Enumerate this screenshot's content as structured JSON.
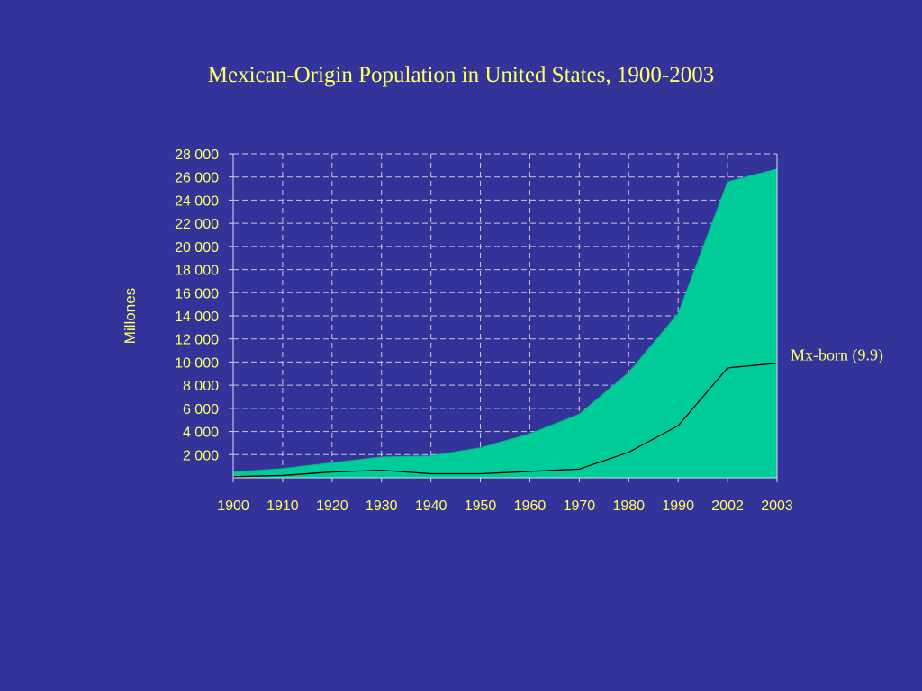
{
  "slide": {
    "title": "Mexican-Origin Population in United States, 1900-2003"
  },
  "chart_data": {
    "type": "area",
    "title": "Mexican-Origin Population in United States, 1900-2003",
    "xlabel": "",
    "ylabel": "Millones",
    "categories": [
      "1900",
      "1910",
      "1920",
      "1930",
      "1940",
      "1950",
      "1960",
      "1970",
      "1980",
      "1990",
      "2002",
      "2003"
    ],
    "ylim": [
      0,
      28000
    ],
    "yticks": [
      2000,
      4000,
      6000,
      8000,
      10000,
      12000,
      14000,
      16000,
      18000,
      20000,
      22000,
      24000,
      26000,
      28000
    ],
    "ytick_labels": [
      "2 000",
      "4 000",
      "6 000",
      "8 000",
      "10 000",
      "12 000",
      "14 000",
      "16 000",
      "18 000",
      "20 000",
      "22 000",
      "24 000",
      "26 000",
      "28 000"
    ],
    "grid": true,
    "series": [
      {
        "values": [
          500,
          800,
          1300,
          1800,
          1900,
          2600,
          3800,
          5500,
          9100,
          14200,
          25600,
          26700
        ],
        "color": "#00cc99"
      },
      {
        "values": [
          100,
          200,
          500,
          650,
          350,
          350,
          550,
          750,
          2200,
          4500,
          9500,
          9900
        ],
        "color": "#000000"
      }
    ],
    "annotations": [
      {
        "text": "Mx-born (9.9)",
        "x": "2003",
        "y": 9900
      }
    ]
  }
}
